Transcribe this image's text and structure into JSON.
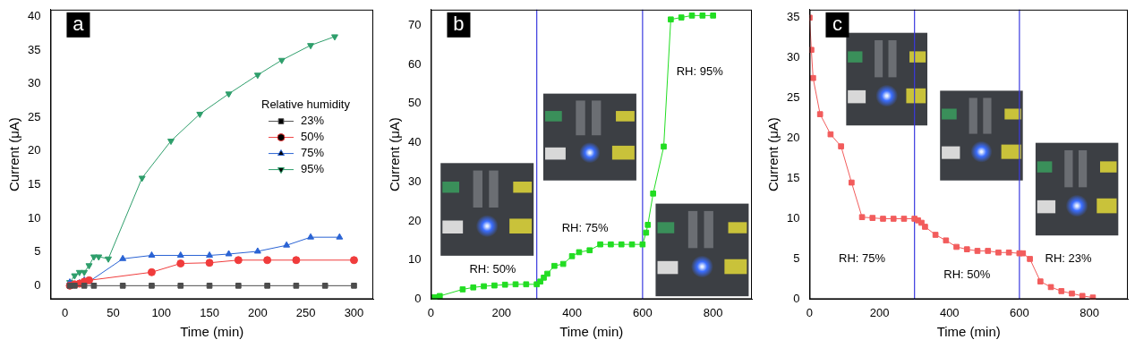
{
  "chart_data": [
    {
      "type": "line",
      "panel_label": "a",
      "x_label": "Time (min)",
      "y_label": "Current (μA)",
      "xlim": [
        -15,
        320
      ],
      "xticks": [
        0,
        50,
        100,
        150,
        200,
        250,
        300
      ],
      "ylim": [
        -2,
        41
      ],
      "yticks": [
        0,
        5,
        10,
        15,
        20,
        25,
        30,
        35,
        40
      ],
      "grid": false,
      "legend": "right",
      "legend_title": "Relative humidity",
      "series": [
        {
          "name": "23%",
          "color": "#4d4d4d",
          "marker": "square",
          "x": [
            5,
            10,
            20,
            30,
            60,
            90,
            120,
            150,
            180,
            210,
            240,
            270,
            300
          ],
          "values": [
            0,
            0,
            0,
            0,
            0,
            0,
            0,
            0,
            0,
            0,
            0,
            0,
            0
          ]
        },
        {
          "name": "50%",
          "color": "#f03c3c",
          "marker": "circle",
          "x": [
            5,
            10,
            15,
            20,
            25,
            90,
            120,
            150,
            180,
            210,
            240,
            300
          ],
          "values": [
            0,
            0.2,
            0.3,
            0.6,
            0.8,
            2.0,
            3.3,
            3.4,
            3.8,
            3.8,
            3.8,
            3.8
          ]
        },
        {
          "name": "75%",
          "color": "#2a63d4",
          "marker": "triangle",
          "x": [
            5,
            10,
            15,
            20,
            25,
            60,
            90,
            120,
            150,
            170,
            200,
            230,
            255,
            285
          ],
          "values": [
            0.5,
            0.1,
            0.4,
            0.8,
            0.6,
            4.0,
            4.5,
            4.5,
            4.5,
            4.7,
            5.1,
            6.0,
            7.2,
            7.2
          ]
        },
        {
          "name": "95%",
          "color": "#2e9e6b",
          "marker": "triangle-down",
          "x": [
            5,
            10,
            15,
            20,
            25,
            30,
            35,
            45,
            80,
            110,
            140,
            170,
            200,
            225,
            255,
            280
          ],
          "values": [
            0.5,
            1.5,
            2.0,
            2.0,
            3.0,
            4.3,
            4.3,
            4.0,
            16.0,
            21.5,
            25.5,
            28.5,
            31.3,
            33.5,
            35.7,
            37.0
          ]
        }
      ]
    },
    {
      "type": "line",
      "panel_label": "b",
      "x_label": "Time (min)",
      "y_label": "Current (μA)",
      "xlim": [
        0,
        910
      ],
      "xticks": [
        0,
        200,
        400,
        600,
        800
      ],
      "ylim": [
        0,
        74
      ],
      "yticks": [
        0,
        10,
        20,
        30,
        40,
        50,
        60,
        70
      ],
      "grid": false,
      "vlines": [
        300,
        600
      ],
      "annotations": [
        {
          "text": "RH: 50%",
          "x": 175,
          "y": 7.5
        },
        {
          "text": "RH: 75%",
          "x": 437,
          "y": 18
        },
        {
          "text": "RH: 95%",
          "x": 762,
          "y": 58
        }
      ],
      "series": [
        {
          "color": "#22dd22",
          "marker": "square",
          "x": [
            10,
            25,
            90,
            120,
            150,
            180,
            210,
            240,
            270,
            300,
            310,
            320,
            330,
            350,
            375,
            400,
            420,
            450,
            480,
            510,
            540,
            570,
            600,
            610,
            615,
            630,
            660,
            680,
            710,
            740,
            770,
            800
          ],
          "values": [
            0.5,
            0.8,
            2.5,
            3.0,
            3.3,
            3.5,
            3.7,
            3.8,
            3.8,
            3.8,
            4.5,
            5.5,
            6.5,
            8.5,
            9.0,
            11.0,
            12.0,
            12.5,
            14.0,
            14.0,
            14.0,
            14.0,
            14.0,
            17.0,
            19.0,
            27.0,
            39.0,
            71.5,
            72.0,
            72.5,
            72.5,
            72.5
          ]
        }
      ]
    },
    {
      "type": "line",
      "panel_label": "c",
      "x_label": "Time (min)",
      "y_label": "Current (μA)",
      "xlim": [
        0,
        910
      ],
      "xticks": [
        0,
        200,
        400,
        600,
        800
      ],
      "ylim": [
        0,
        36
      ],
      "yticks": [
        0,
        5,
        10,
        15,
        20,
        25,
        30,
        35
      ],
      "grid": false,
      "vlines": [
        300,
        600
      ],
      "annotations": [
        {
          "text": "RH: 75%",
          "x": 150,
          "y": 5
        },
        {
          "text": "RH: 50%",
          "x": 450,
          "y": 3
        },
        {
          "text": "RH: 23%",
          "x": 740,
          "y": 5
        }
      ],
      "series": [
        {
          "color": "#f25c5c",
          "marker": "square",
          "x": [
            0,
            5,
            10,
            30,
            60,
            90,
            120,
            150,
            180,
            210,
            240,
            270,
            300,
            310,
            320,
            330,
            360,
            390,
            420,
            450,
            480,
            510,
            540,
            570,
            600,
            610,
            630,
            660,
            690,
            720,
            750,
            780,
            810
          ],
          "values": [
            35.0,
            31.0,
            27.5,
            23.0,
            20.5,
            19.0,
            14.5,
            10.2,
            10.1,
            10.0,
            10.0,
            10.0,
            10.0,
            9.8,
            9.5,
            9.0,
            8.0,
            7.3,
            6.5,
            6.2,
            6.0,
            6.0,
            5.8,
            5.8,
            5.7,
            5.7,
            5.0,
            2.2,
            1.5,
            1.0,
            0.7,
            0.4,
            0.2
          ]
        }
      ]
    }
  ]
}
